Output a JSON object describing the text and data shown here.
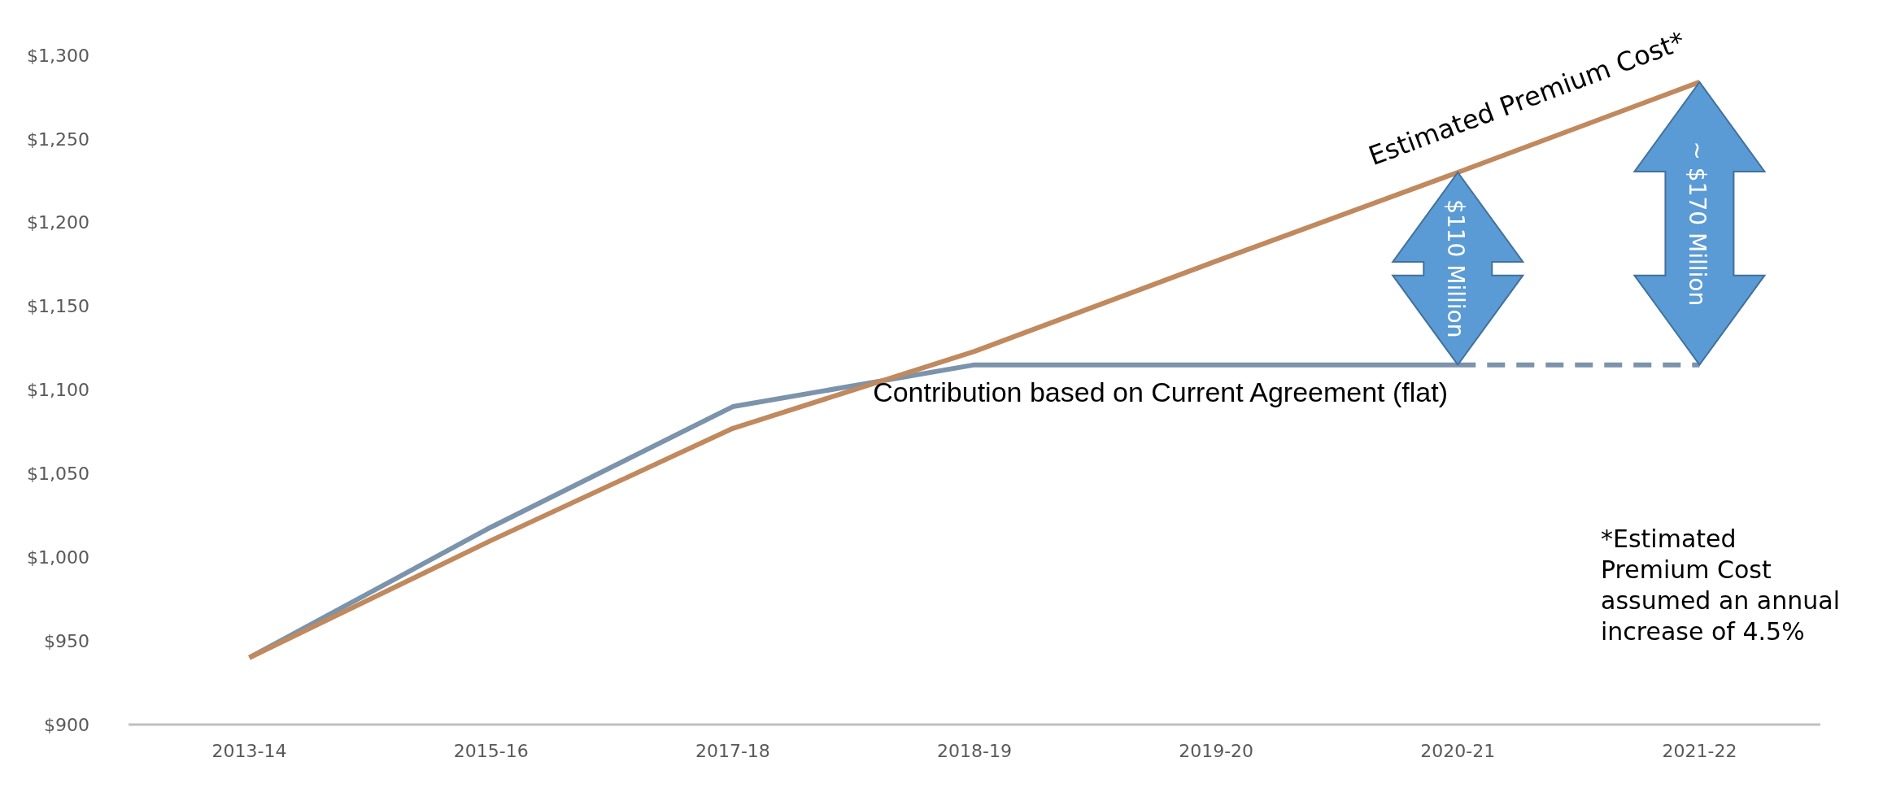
{
  "chart_data": {
    "type": "line",
    "categories": [
      "2013-14",
      "2015-16",
      "2017-18",
      "2018-19",
      "2019-20",
      "2020-21",
      "2021-22"
    ],
    "series": [
      {
        "name": "Contribution based on Current Agreement (flat)",
        "color": "#7b93ab",
        "values": [
          940,
          1018,
          1090,
          1115,
          1115,
          1115,
          null
        ],
        "line_style": "solid"
      },
      {
        "color": "#7b93ab",
        "values": [
          null,
          null,
          null,
          null,
          null,
          1115,
          1115
        ],
        "line_style": "dashed"
      },
      {
        "name": "Estimated Premium Cost*",
        "color": "#c0895e",
        "values": [
          940,
          1010,
          1077,
          1123,
          1177,
          1230,
          1284
        ],
        "line_style": "solid"
      }
    ],
    "ylim": [
      900,
      1300
    ],
    "yticks": [
      {
        "value": 900,
        "label": "$900"
      },
      {
        "value": 950,
        "label": "$950"
      },
      {
        "value": 1000,
        "label": "$1,000"
      },
      {
        "value": 1050,
        "label": "$1,050"
      },
      {
        "value": 1100,
        "label": "$1,100"
      },
      {
        "value": 1150,
        "label": "$1,150"
      },
      {
        "value": 1200,
        "label": "$1,200"
      },
      {
        "value": 1250,
        "label": "$1,250"
      },
      {
        "value": 1300,
        "label": "$1,300"
      }
    ],
    "grid": false,
    "marker": "none",
    "annotations": [
      "$110 Million",
      "~ $170 Million",
      "*Estimated Premium Cost assumed an annual increase of 4.5%"
    ]
  }
}
